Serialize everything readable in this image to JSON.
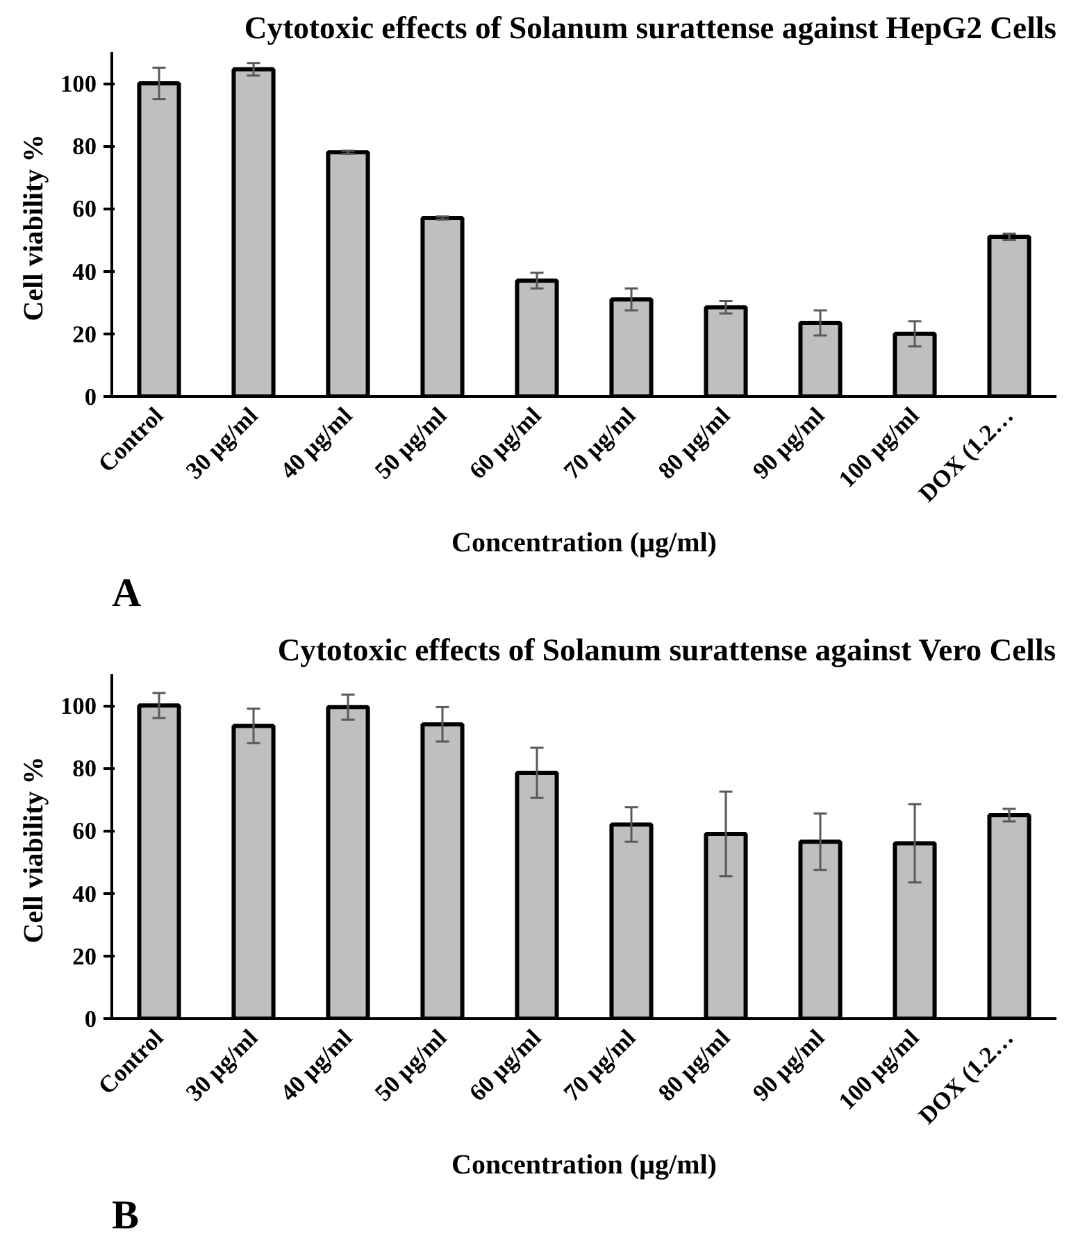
{
  "chart_data": [
    {
      "type": "bar",
      "title": "Cytotoxic effects of Solanum surattense against HepG2 Cells",
      "xlabel": "Concentration (µg/ml)",
      "ylabel": "Cell viability  %",
      "annotations": [
        "A"
      ],
      "categories": [
        "Control",
        "30 µg/ml",
        "40 µg/ml",
        "50 µg/ml",
        "60 µg/ml",
        "70 µg/ml",
        "80 µg/ml",
        "90 µg/ml",
        "100 µg/ml",
        "DOX (1.2…"
      ],
      "values": [
        100,
        104.5,
        78,
        57,
        37,
        31,
        28.5,
        23.5,
        20,
        51
      ],
      "errors": [
        5,
        2,
        0.5,
        0.5,
        2.5,
        3.5,
        2,
        4,
        4,
        1
      ],
      "color": "#bfbfbf",
      "ylim": [
        0,
        110
      ],
      "yticks": [
        0,
        20,
        40,
        60,
        80,
        100
      ]
    },
    {
      "type": "bar",
      "title": "Cytotoxic effects of Solanum surattense against Vero Cells",
      "xlabel": "Concentration (µg/ml)",
      "ylabel": "Cell viability  %",
      "annotations": [
        "B"
      ],
      "categories": [
        "Control",
        "30 µg/ml",
        "40 µg/ml",
        "50 µg/ml",
        "60 µg/ml",
        "70 µg/ml",
        "80 µg/ml",
        "90 µg/ml",
        "100 µg/ml",
        "DOX (1.2…"
      ],
      "values": [
        100,
        93.5,
        99.5,
        94,
        78.5,
        62,
        59,
        56.5,
        56,
        65
      ],
      "errors": [
        4,
        5.5,
        4,
        5.5,
        8,
        5.5,
        13.5,
        9,
        12.5,
        2
      ],
      "color": "#bfbfbf",
      "ylim": [
        0,
        110
      ],
      "yticks": [
        0,
        20,
        40,
        60,
        80,
        100
      ]
    }
  ]
}
